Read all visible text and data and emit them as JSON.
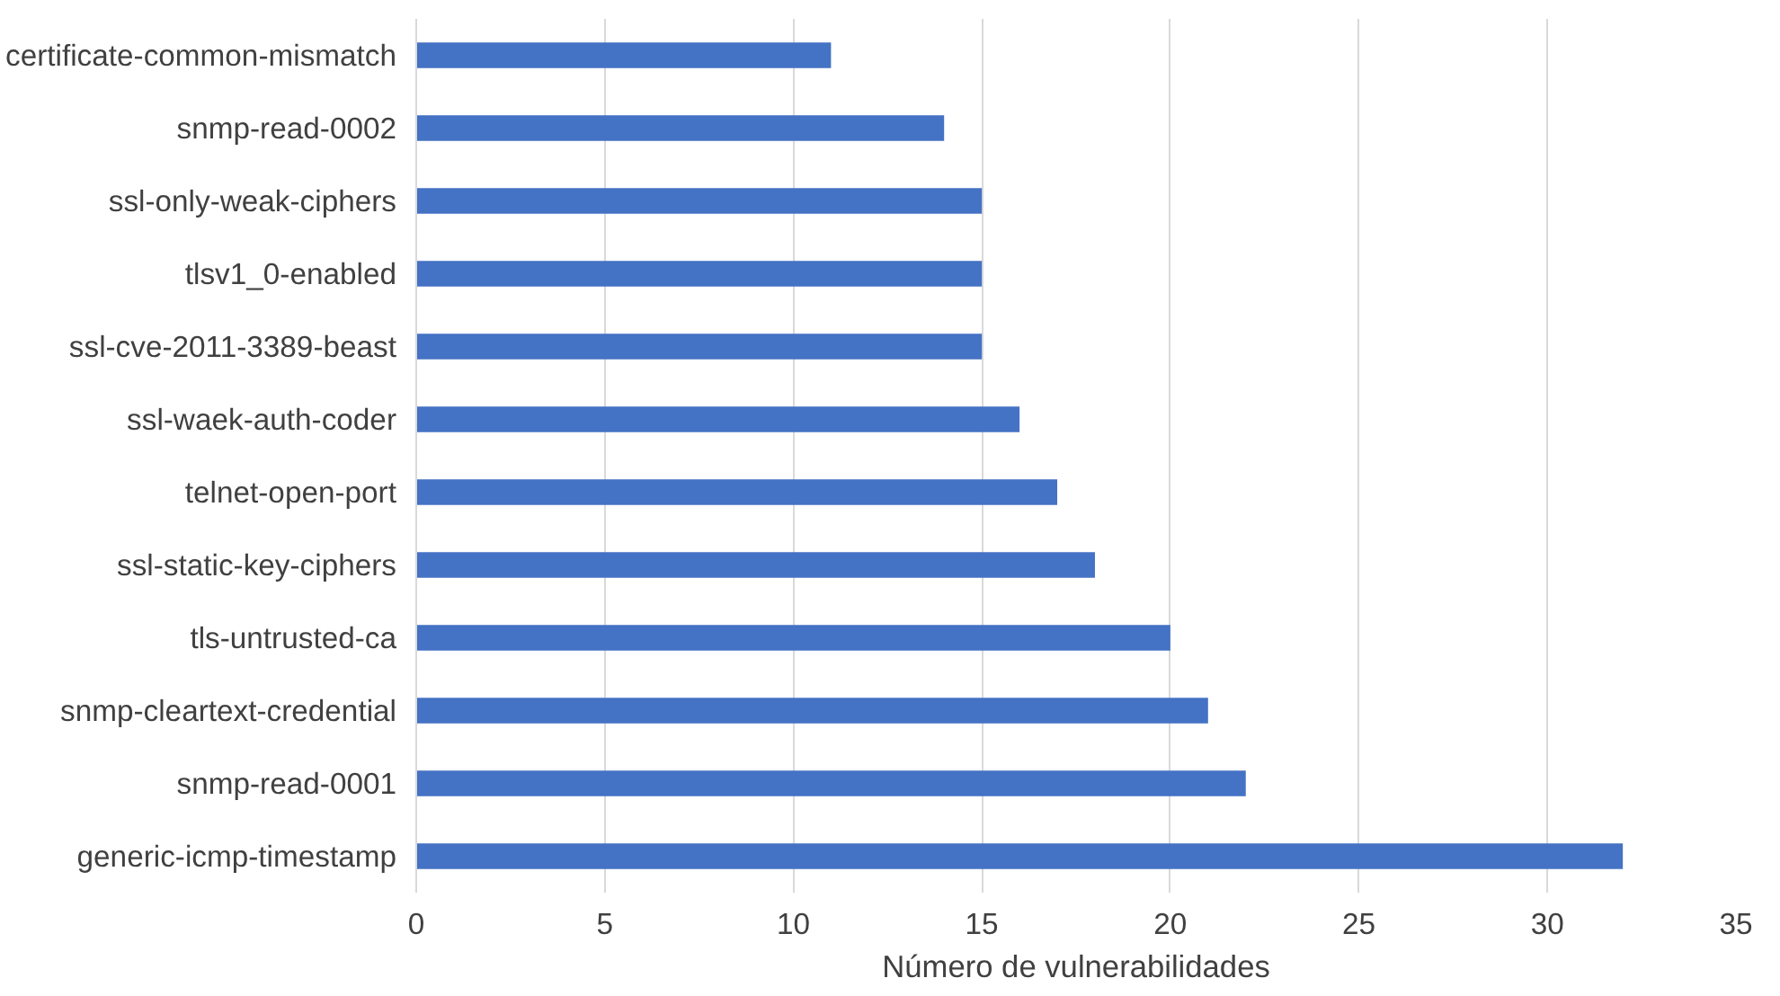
{
  "chart_data": {
    "type": "bar",
    "orientation": "horizontal",
    "xlabel": "Número de vulnerabilidades",
    "categories": [
      "certificate-common-mismatch",
      "snmp-read-0002",
      "ssl-only-weak-ciphers",
      "tlsv1_0-enabled",
      "ssl-cve-2011-3389-beast",
      "ssl-waek-auth-coder",
      "telnet-open-port",
      "ssl-static-key-ciphers",
      "tls-untrusted-ca",
      "snmp-cleartext-credential",
      "snmp-read-0001",
      "generic-icmp-timestamp"
    ],
    "values": [
      11,
      14,
      15,
      15,
      15,
      16,
      17,
      18,
      20,
      21,
      22,
      32
    ],
    "color": "#4472c4",
    "xlim": [
      0,
      35
    ],
    "xticks": [
      0,
      5,
      10,
      15,
      20,
      25,
      30,
      35
    ],
    "grid": "x"
  }
}
